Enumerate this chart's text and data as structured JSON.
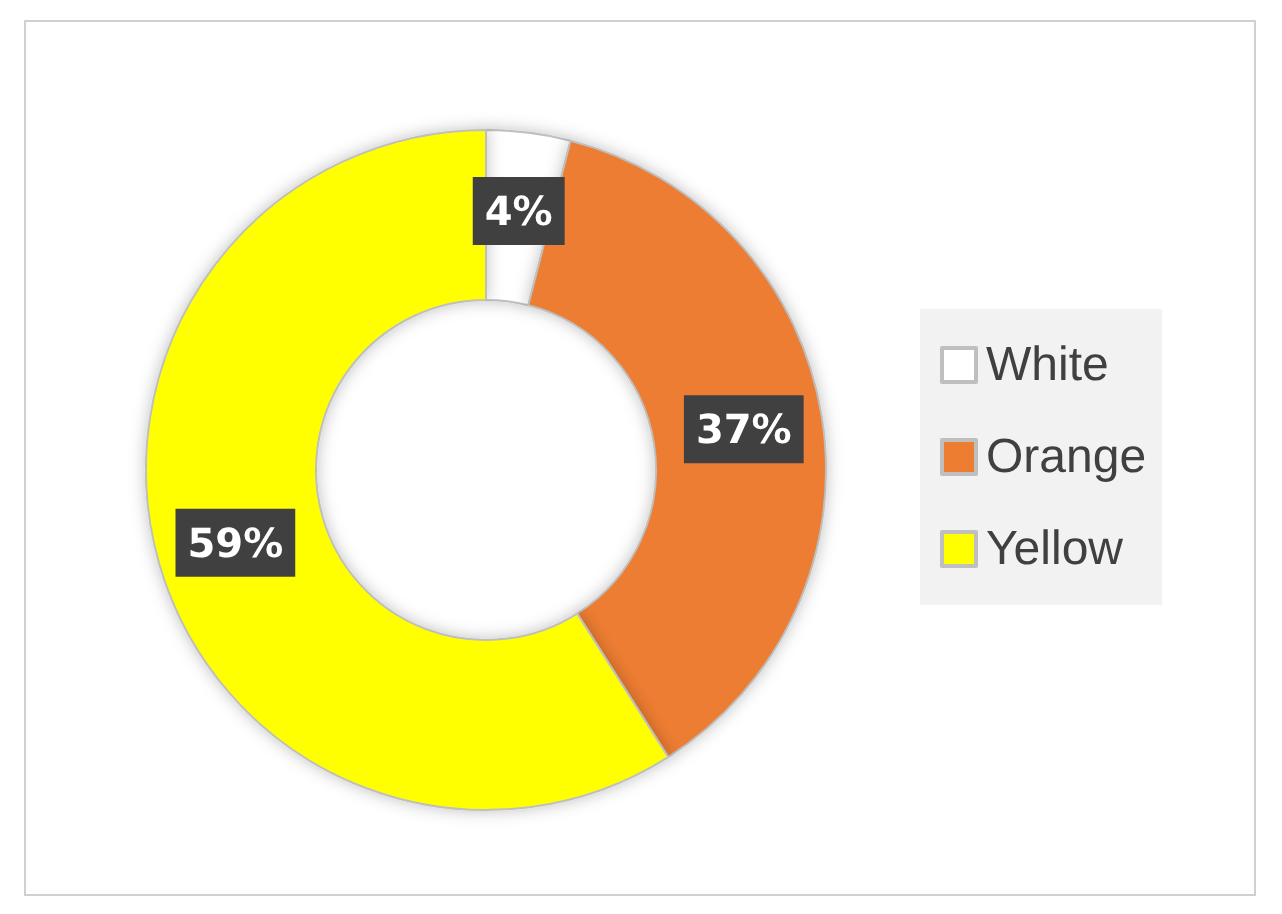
{
  "chart_data": {
    "type": "donut",
    "categories": [
      "White",
      "Orange",
      "Yellow"
    ],
    "values": [
      4,
      37,
      59
    ],
    "colors": [
      "#ffffff",
      "#ed7d31",
      "#ffff00"
    ],
    "value_labels": [
      "4%",
      "37%",
      "59%"
    ],
    "legend": "right"
  }
}
